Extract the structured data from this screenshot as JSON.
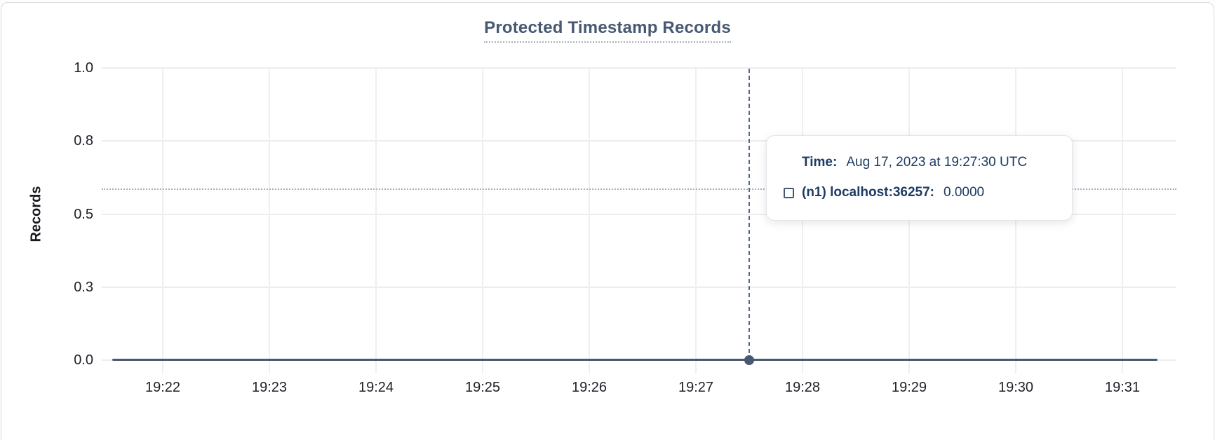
{
  "chart_data": {
    "type": "line",
    "title": "Protected Timestamp Records",
    "xlabel": "",
    "ylabel": "Records",
    "x": [
      "19:22",
      "19:23",
      "19:24",
      "19:25",
      "19:26",
      "19:27",
      "19:28",
      "19:29",
      "19:30",
      "19:31"
    ],
    "y_tick_labels_top_to_bottom": [
      "1.0",
      "0.8",
      "0.5",
      "0.3",
      "0.0"
    ],
    "ylim": [
      0.0,
      1.0
    ],
    "grid": true,
    "legend_position": "none",
    "series": [
      {
        "name": "(n1) localhost:36257",
        "color": "#475872",
        "values": [
          0,
          0,
          0,
          0,
          0,
          0,
          0,
          0,
          0,
          0
        ]
      }
    ],
    "hover_point": {
      "time": "19:27:30",
      "value": 0.0
    }
  },
  "tooltip": {
    "time_label": "Time:",
    "time_value": "Aug 17, 2023 at 19:27:30 UTC",
    "series_label": "(n1) localhost:36257:",
    "series_value": "0.0000"
  },
  "colors": {
    "accent_series": "#475872",
    "title_text": "#475872",
    "tooltip_text": "#1d3c63",
    "axis_text": "#1d2027",
    "gridline": "#ededef",
    "card_border": "#d9dbe0"
  }
}
